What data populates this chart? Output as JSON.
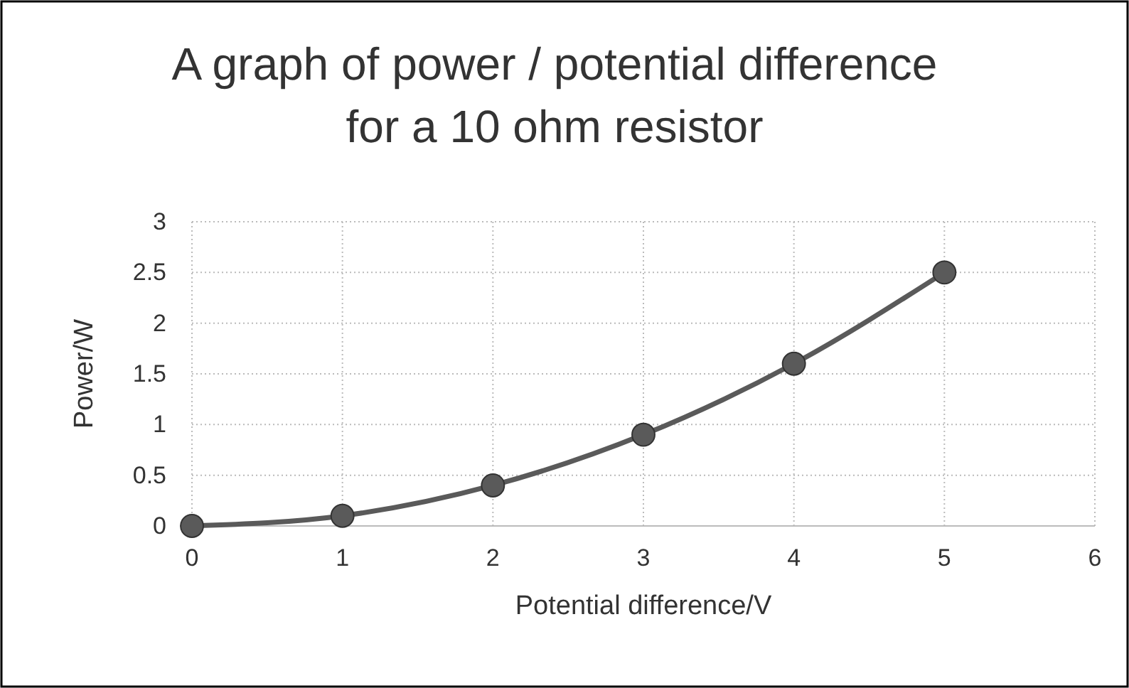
{
  "chart_data": {
    "type": "line",
    "title": "A graph of power / potential difference for a 10 ohm resistor",
    "xlabel": "Potential difference/V",
    "ylabel": "Power/W",
    "x": [
      0,
      1,
      2,
      3,
      4,
      5
    ],
    "series": [
      {
        "color": "#5a5a5a",
        "values": [
          0,
          0.1,
          0.4,
          0.9,
          1.6,
          2.5
        ]
      }
    ],
    "xlim": [
      0,
      6
    ],
    "xticks": [
      0,
      1,
      2,
      3,
      4,
      5,
      6
    ],
    "ylim": [
      0,
      3
    ],
    "yticks": [
      0,
      0.5,
      1,
      1.5,
      2,
      2.5,
      3
    ],
    "grid": true,
    "marker": "circle",
    "line_style": "solid"
  }
}
